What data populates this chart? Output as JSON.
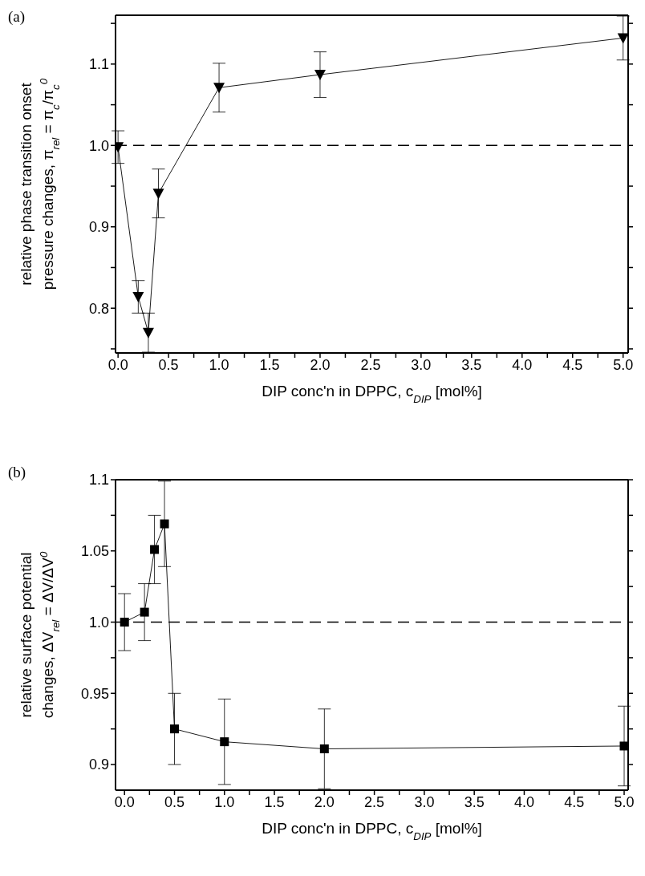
{
  "chart_data": [
    {
      "type": "line",
      "xlabel": "DIP conc'n in DPPC, c$_{DIP}$  [mol%]",
      "ylabel": "relative phase transition onset pressure changes, π$_{rel}$ = π$_{c}$/π$_{c}$$^{0}$",
      "annotations": [
        "(a)"
      ],
      "marker": "triangle",
      "line_style": "solid",
      "xlim": [
        -0.025,
        5.05
      ],
      "ylim": [
        0.745,
        1.16
      ],
      "xticks": [
        {
          "value": 0,
          "label": "0.0"
        },
        {
          "value": 0.25,
          "label": null
        },
        0.5,
        {
          "value": 0.75,
          "label": null
        },
        {
          "value": 1,
          "label": "1.0"
        },
        {
          "value": 1.25,
          "label": null
        },
        1.5,
        {
          "value": 1.75,
          "label": null
        },
        {
          "value": 2,
          "label": "2.0"
        },
        {
          "value": 2.25,
          "label": null
        },
        2.5,
        {
          "value": 2.75,
          "label": null
        },
        {
          "value": 3,
          "label": "3.0"
        },
        {
          "value": 3.25,
          "label": null
        },
        3.5,
        {
          "value": 3.75,
          "label": null
        },
        {
          "value": 4,
          "label": "4.0"
        },
        {
          "value": 4.25,
          "label": null
        },
        4.5,
        {
          "value": 4.75,
          "label": null
        },
        {
          "value": 5,
          "label": "5.0"
        }
      ],
      "yticks": [
        {
          "value": 0.75,
          "label": null
        },
        0.8,
        {
          "value": 0.85,
          "label": null
        },
        0.9,
        {
          "value": 0.95,
          "label": null
        },
        {
          "value": 1,
          "label": "1.0"
        },
        {
          "value": 1.05,
          "label": null
        },
        1.1,
        {
          "value": 1.15,
          "label": null
        }
      ],
      "ref_lines": [
        {
          "axis": "y",
          "value": 1,
          "color": "#000000",
          "line_style": "dashed"
        }
      ],
      "series": [
        {
          "color": "#000000",
          "x": [
            0,
            0.2,
            0.3,
            0.4,
            1,
            2,
            5
          ],
          "values": [
            0.998,
            0.814,
            0.77,
            0.941,
            1.071,
            1.087,
            1.132
          ],
          "errors": [
            0.02,
            0.02,
            0.024,
            0.03,
            0.03,
            0.028,
            0.027
          ]
        }
      ]
    },
    {
      "type": "line",
      "xlabel": "DIP conc'n in DPPC, c$_{DIP}$  [mol%]",
      "ylabel": "relative surface potential changes, ΔV$_{rel}$ = ΔV/ΔV$^{0}$",
      "annotations": [
        "(b)"
      ],
      "marker": "square",
      "line_style": "solid",
      "xlim": [
        -0.09,
        5.04
      ],
      "ylim": [
        0.882,
        1.1
      ],
      "xticks": [
        {
          "value": 0,
          "label": "0.0"
        },
        {
          "value": 0.25,
          "label": null
        },
        0.5,
        {
          "value": 0.75,
          "label": null
        },
        {
          "value": 1,
          "label": "1.0"
        },
        {
          "value": 1.25,
          "label": null
        },
        1.5,
        {
          "value": 1.75,
          "label": null
        },
        {
          "value": 2,
          "label": "2.0"
        },
        {
          "value": 2.25,
          "label": null
        },
        2.5,
        {
          "value": 2.75,
          "label": null
        },
        {
          "value": 3,
          "label": "3.0"
        },
        {
          "value": 3.25,
          "label": null
        },
        3.5,
        {
          "value": 3.75,
          "label": null
        },
        {
          "value": 4,
          "label": "4.0"
        },
        {
          "value": 4.25,
          "label": null
        },
        4.5,
        {
          "value": 4.75,
          "label": null
        },
        {
          "value": 5,
          "label": "5.0"
        }
      ],
      "yticks": [
        0.9,
        {
          "value": 0.925,
          "label": null
        },
        0.95,
        {
          "value": 0.975,
          "label": null
        },
        {
          "value": 1,
          "label": "1.0"
        },
        {
          "value": 1.025,
          "label": null
        },
        1.05,
        {
          "value": 1.075,
          "label": null
        },
        1.1
      ],
      "ref_lines": [
        {
          "axis": "y",
          "value": 1,
          "color": "#000000",
          "line_style": "dashed"
        }
      ],
      "series": [
        {
          "color": "#000000",
          "x": [
            0,
            0.2,
            0.3,
            0.4,
            0.5,
            1,
            2,
            5
          ],
          "values": [
            1.0,
            1.007,
            1.051,
            1.069,
            0.925,
            0.916,
            0.911,
            0.913
          ],
          "errors": [
            0.02,
            0.02,
            0.024,
            0.03,
            0.025,
            0.03,
            0.028,
            0.028
          ]
        }
      ]
    }
  ]
}
